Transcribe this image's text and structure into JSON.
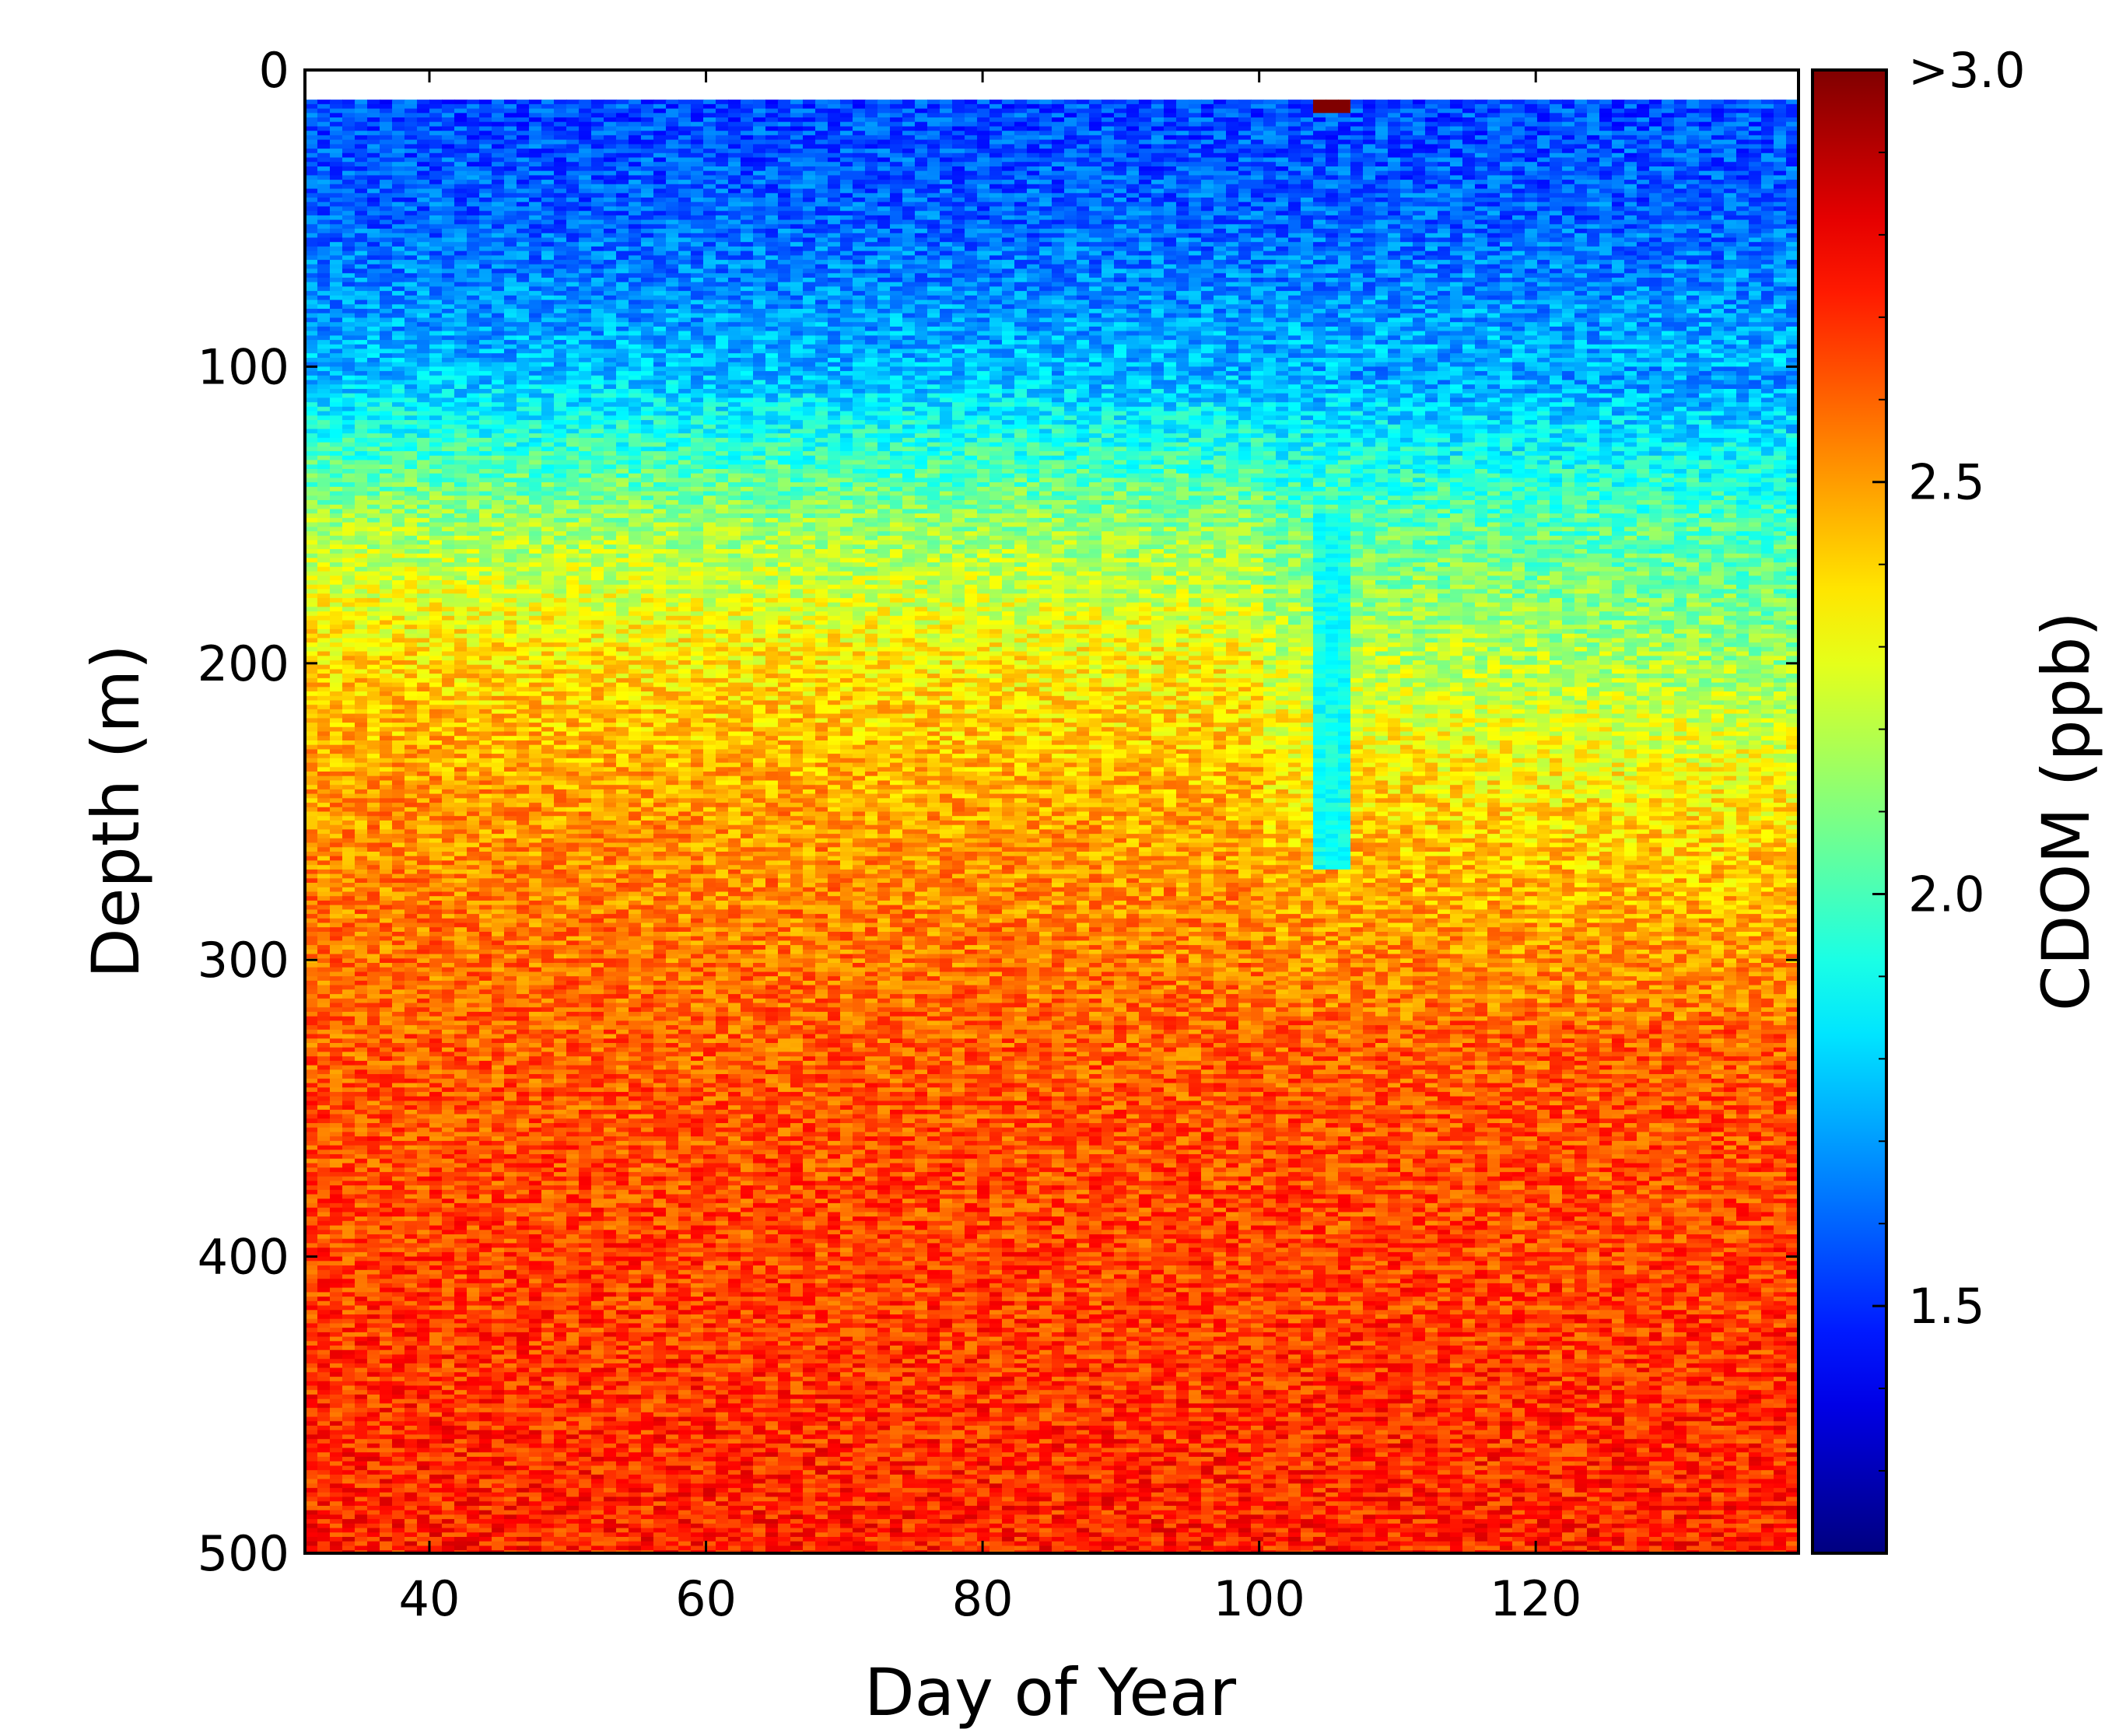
{
  "chart_data": {
    "type": "heatmap",
    "xlabel": "Day of Year",
    "ylabel": "Depth (m)",
    "colorbar_label": "CDOM (ppb)",
    "xlim": [
      31,
      139
    ],
    "ylim": [
      500,
      0
    ],
    "data_depth_range": [
      10,
      500
    ],
    "x_ticks": [
      40,
      60,
      80,
      100,
      120
    ],
    "x_tick_labels": [
      "40",
      "60",
      "80",
      "100",
      "120"
    ],
    "y_ticks": [
      0,
      100,
      200,
      300,
      400,
      500
    ],
    "y_tick_labels": [
      "0",
      "100",
      "200",
      "300",
      "400",
      "500"
    ],
    "colorbar_range": [
      1.2,
      3.0
    ],
    "colorbar_ticks": [
      1.5,
      2.0,
      2.5,
      3.0
    ],
    "colorbar_tick_labels": [
      "1.5",
      "2.0",
      "2.5",
      ">3.0"
    ],
    "colormap": "jet",
    "depth_profile": {
      "depth": [
        10,
        50,
        100,
        150,
        200,
        250,
        300,
        350,
        400,
        450,
        500
      ],
      "cdom": [
        1.55,
        1.6,
        1.75,
        2.15,
        2.4,
        2.52,
        2.58,
        2.63,
        2.66,
        2.69,
        2.72
      ]
    },
    "annotations": [
      {
        "type": "hotspot",
        "day": 105,
        "depth": 12,
        "cdom": 3.0
      },
      {
        "type": "low_column",
        "day": 105,
        "depth_range": [
          150,
          270
        ],
        "cdom": 1.9
      }
    ]
  }
}
